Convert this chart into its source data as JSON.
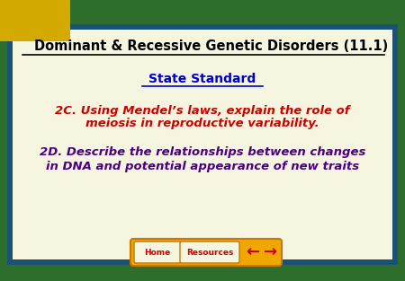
{
  "title": "Dominant & Recessive Genetic Disorders (11.1)",
  "subtitle": "State Standard",
  "text1_line1": "2C. Using Mendel’s laws, explain the role of",
  "text1_line2": "meiosis in reproductive variability.",
  "text2_line1": "2D. Describe the relationships between changes",
  "text2_line2": "in DNA and potential appearance of new traits",
  "bg_outer": "#2d6e2d",
  "bg_inner": "#f5f5e0",
  "border_color": "#1a5276",
  "title_color": "#000000",
  "subtitle_color": "#0000cc",
  "text1_color": "#cc0000",
  "text2_color": "#4b0082",
  "corner_color": "#d4aa00",
  "nav_bg": "#f0a800",
  "nav_text_color": "#cc0000",
  "arrow_color": "#cc0000",
  "nav_border": "#c87800"
}
